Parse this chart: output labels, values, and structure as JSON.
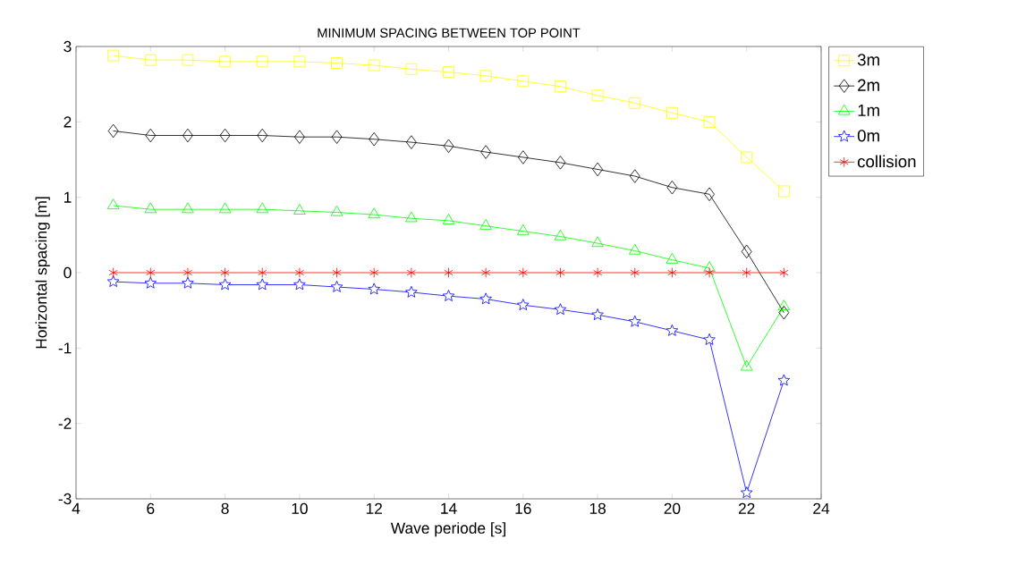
{
  "chart_data": {
    "type": "line",
    "title": "MINIMUM SPACING BETWEEN TOP POINT",
    "xlabel": "Wave periode [s]",
    "ylabel": "Horizontal spacing [m]",
    "x": [
      5,
      6,
      7,
      8,
      9,
      10,
      11,
      12,
      13,
      14,
      15,
      16,
      17,
      18,
      19,
      20,
      21,
      22,
      23
    ],
    "series": [
      {
        "name": "3m",
        "color": "#ffff00",
        "marker": "square",
        "values": [
          2.88,
          2.82,
          2.82,
          2.8,
          2.8,
          2.8,
          2.78,
          2.75,
          2.7,
          2.66,
          2.61,
          2.54,
          2.47,
          2.35,
          2.25,
          2.12,
          2.0,
          1.53,
          1.08
        ]
      },
      {
        "name": "2m",
        "color": "#000000",
        "marker": "diamond",
        "values": [
          1.88,
          1.82,
          1.82,
          1.82,
          1.82,
          1.8,
          1.8,
          1.77,
          1.73,
          1.68,
          1.6,
          1.53,
          1.46,
          1.37,
          1.28,
          1.13,
          1.04,
          0.28,
          -0.53
        ]
      },
      {
        "name": "1m",
        "color": "#00ff00",
        "marker": "triangle",
        "values": [
          0.89,
          0.84,
          0.84,
          0.84,
          0.84,
          0.82,
          0.8,
          0.77,
          0.72,
          0.69,
          0.62,
          0.55,
          0.48,
          0.39,
          0.29,
          0.17,
          0.06,
          -1.25,
          -0.45
        ]
      },
      {
        "name": "0m",
        "color": "#0000ff",
        "marker": "star",
        "values": [
          -0.12,
          -0.14,
          -0.14,
          -0.16,
          -0.16,
          -0.16,
          -0.19,
          -0.22,
          -0.26,
          -0.31,
          -0.35,
          -0.43,
          -0.49,
          -0.56,
          -0.65,
          -0.77,
          -0.89,
          -2.92,
          -1.43
        ]
      },
      {
        "name": "collision",
        "color": "#ff0000",
        "marker": "cross",
        "values": [
          0,
          0,
          0,
          0,
          0,
          0,
          0,
          0,
          0,
          0,
          0,
          0,
          0,
          0,
          0,
          0,
          0,
          0,
          0
        ]
      }
    ],
    "xlim": [
      4,
      24
    ],
    "xticks": [
      4,
      6,
      8,
      10,
      12,
      14,
      16,
      18,
      20,
      22,
      24
    ],
    "ylim": [
      -3,
      3
    ],
    "yticks": [
      -3,
      -2,
      -1,
      0,
      1,
      2,
      3
    ],
    "grid": false,
    "legend": "top right",
    "line_style": "solid"
  }
}
